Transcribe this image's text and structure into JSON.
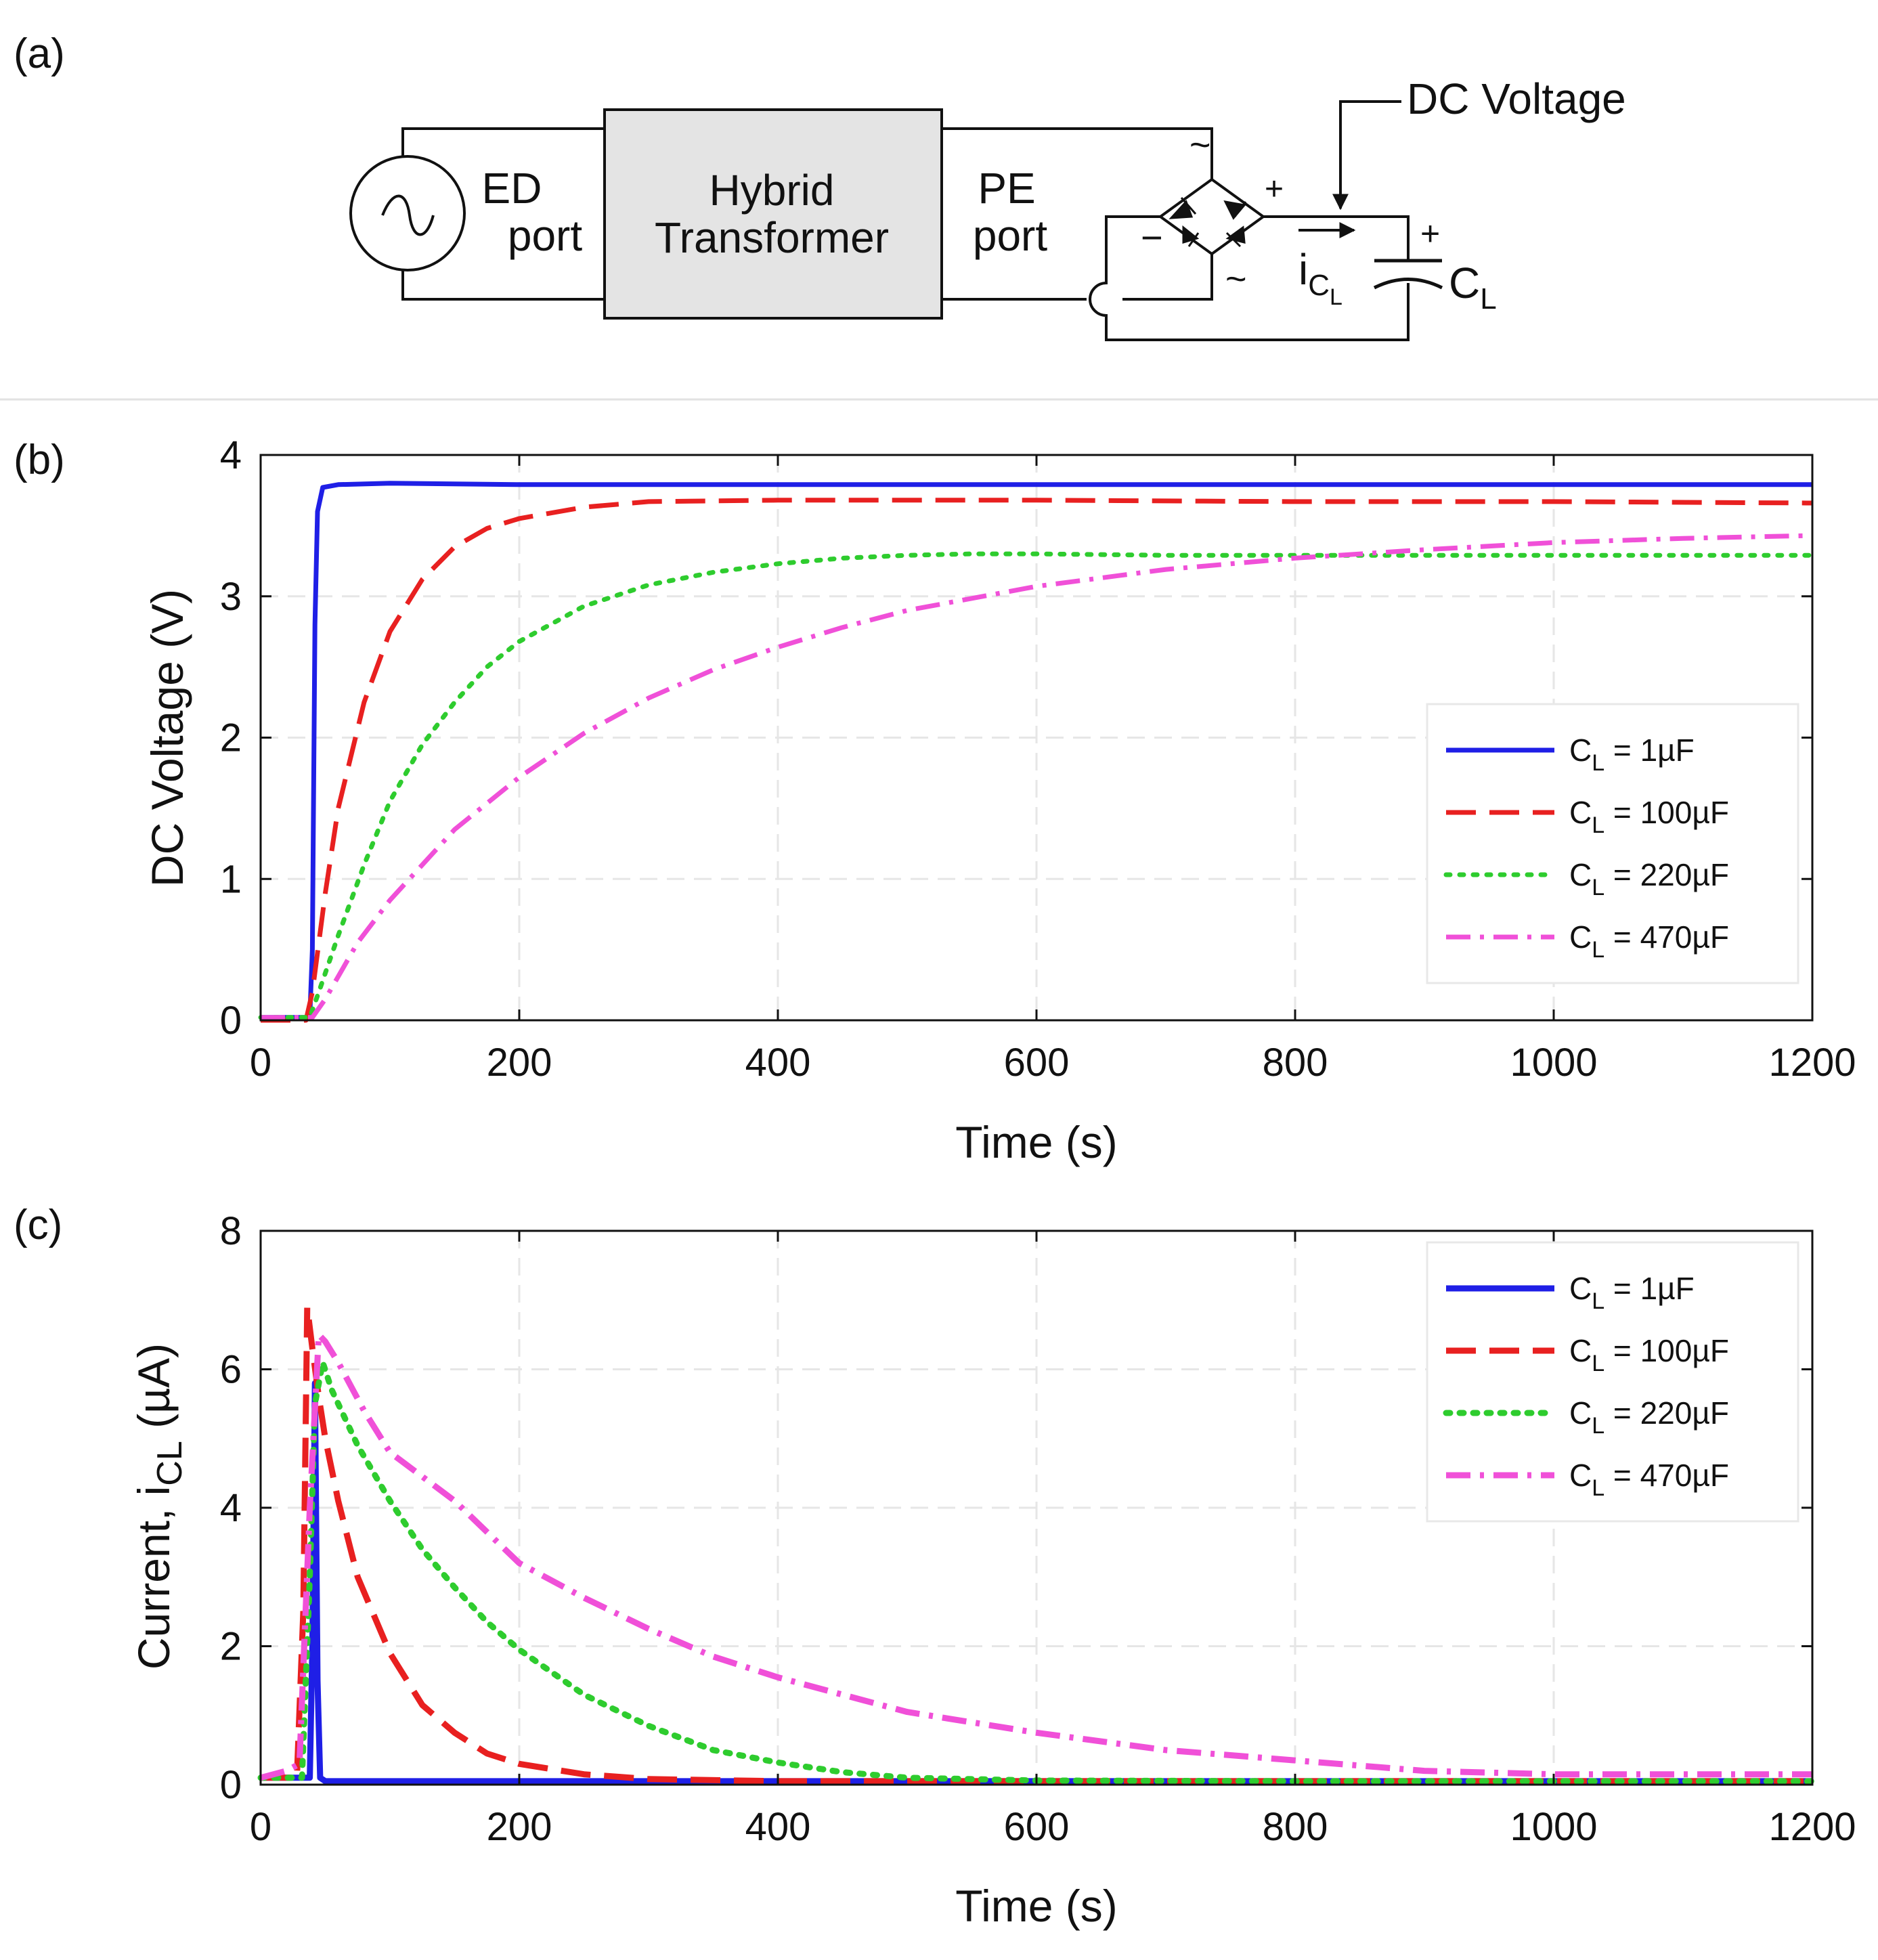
{
  "panel_labels": {
    "a": "(a)",
    "b": "(b)",
    "c": "(c)"
  },
  "diagram": {
    "ed_port": [
      "ED",
      "port"
    ],
    "transformer": [
      "Hybrid",
      "Transformer"
    ],
    "pe_port": [
      "PE",
      "port"
    ],
    "dc_voltage": "DC Voltage",
    "current_label": "i",
    "current_sub": "C",
    "current_subsub": "L",
    "cap_label": "C",
    "cap_sub": "L",
    "plus": "+",
    "minus": "−",
    "tilde": "~",
    "source_symbol": "∼"
  },
  "chart_data": [
    {
      "type": "line",
      "panel": "(b)",
      "title": "",
      "xlabel": "Time (s)",
      "ylabel": "DC Voltage (V)",
      "xlim": [
        0,
        1200
      ],
      "ylim": [
        0,
        4
      ],
      "xticks": [
        0,
        200,
        400,
        600,
        800,
        1000,
        1200
      ],
      "yticks": [
        0,
        1,
        2,
        3,
        4
      ],
      "grid": true,
      "legend_position": "lower-right",
      "series": [
        {
          "name": "C_L = 1µF",
          "label_main": "C",
          "label_sub": "L",
          "label_rest": " = 1µF",
          "color": "#1f1fe6",
          "dash": "solid",
          "x": [
            0,
            38,
            40,
            42,
            44,
            48,
            60,
            100,
            200,
            400,
            800,
            1200
          ],
          "y": [
            0.02,
            0.02,
            0.5,
            2.8,
            3.6,
            3.77,
            3.79,
            3.8,
            3.79,
            3.79,
            3.79,
            3.79
          ]
        },
        {
          "name": "C_L = 100µF",
          "label_main": "C",
          "label_sub": "L",
          "label_rest": " = 100µF",
          "color": "#e82020",
          "dash": "dashed",
          "x": [
            0,
            35,
            40,
            50,
            60,
            80,
            100,
            125,
            150,
            175,
            200,
            250,
            300,
            400,
            600,
            800,
            1000,
            1200
          ],
          "y": [
            0,
            0,
            0.2,
            0.9,
            1.5,
            2.25,
            2.75,
            3.12,
            3.35,
            3.48,
            3.55,
            3.63,
            3.67,
            3.68,
            3.68,
            3.67,
            3.67,
            3.66
          ]
        },
        {
          "name": "C_L = 220µF",
          "label_main": "C",
          "label_sub": "L",
          "label_rest": " = 220µF",
          "color": "#2ecc2e",
          "dash": "dotted",
          "x": [
            0,
            38,
            45,
            60,
            80,
            100,
            125,
            150,
            175,
            200,
            250,
            300,
            350,
            400,
            450,
            500,
            550,
            600,
            700,
            800,
            1000,
            1200
          ],
          "y": [
            0.02,
            0.02,
            0.2,
            0.6,
            1.1,
            1.55,
            1.95,
            2.25,
            2.5,
            2.68,
            2.93,
            3.08,
            3.17,
            3.23,
            3.27,
            3.29,
            3.3,
            3.3,
            3.29,
            3.29,
            3.29,
            3.29
          ]
        },
        {
          "name": "C_L = 470µF",
          "label_main": "C",
          "label_sub": "L",
          "label_rest": " = 470µF",
          "color": "#f050d8",
          "dash": "dashdot",
          "x": [
            0,
            40,
            50,
            75,
            100,
            150,
            200,
            250,
            300,
            350,
            400,
            450,
            500,
            600,
            700,
            800,
            900,
            1000,
            1100,
            1200
          ],
          "y": [
            0.02,
            0.02,
            0.15,
            0.55,
            0.85,
            1.35,
            1.72,
            2.03,
            2.28,
            2.48,
            2.64,
            2.78,
            2.9,
            3.07,
            3.19,
            3.27,
            3.33,
            3.38,
            3.41,
            3.43
          ]
        }
      ]
    },
    {
      "type": "line",
      "panel": "(c)",
      "title": "",
      "xlabel": "Time (s)",
      "ylabel": "Current, i",
      "ylabel_sub": "CL",
      "ylabel_rest": " (µA)",
      "xlim": [
        0,
        1200
      ],
      "ylim": [
        0,
        8
      ],
      "xticks": [
        0,
        200,
        400,
        600,
        800,
        1000,
        1200
      ],
      "yticks": [
        0,
        2,
        4,
        6,
        8
      ],
      "grid": true,
      "legend_position": "top-right",
      "series": [
        {
          "name": "C_L = 1µF",
          "label_main": "C",
          "label_sub": "L",
          "label_rest": " = 1µF",
          "color": "#1f1fe6",
          "dash": "solid",
          "x": [
            0,
            38,
            40,
            42,
            44,
            46,
            50,
            100,
            400,
            800,
            1200
          ],
          "y": [
            0.1,
            0.1,
            2.0,
            5.8,
            1.5,
            0.1,
            0.05,
            0.05,
            0.05,
            0.05,
            0.05
          ]
        },
        {
          "name": "C_L = 100µF",
          "label_main": "C",
          "label_sub": "L",
          "label_rest": " = 100µF",
          "color": "#e82020",
          "dash": "dashed",
          "x": [
            0,
            28,
            33,
            36,
            40,
            45,
            50,
            60,
            75,
            100,
            125,
            150,
            175,
            200,
            250,
            300,
            400,
            600,
            800,
            1000,
            1200
          ],
          "y": [
            0.1,
            0.1,
            2.5,
            6.9,
            6.3,
            5.6,
            5.0,
            4.1,
            3.0,
            1.9,
            1.15,
            0.75,
            0.45,
            0.3,
            0.15,
            0.08,
            0.05,
            0.05,
            0.05,
            0.05,
            0.05
          ]
        },
        {
          "name": "C_L = 220µF",
          "label_main": "C",
          "label_sub": "L",
          "label_rest": " = 220µF",
          "color": "#2ecc2e",
          "dash": "dotted",
          "x": [
            0,
            32,
            38,
            42,
            48,
            55,
            75,
            100,
            125,
            150,
            175,
            200,
            250,
            300,
            350,
            400,
            450,
            500,
            600,
            800,
            1000,
            1200
          ],
          "y": [
            0.1,
            0.1,
            3.0,
            5.5,
            6.1,
            5.7,
            4.9,
            4.1,
            3.4,
            2.85,
            2.35,
            1.95,
            1.3,
            0.85,
            0.5,
            0.32,
            0.18,
            0.1,
            0.06,
            0.05,
            0.05,
            0.05
          ]
        },
        {
          "name": "C_L = 470µF",
          "label_main": "C",
          "label_sub": "L",
          "label_rest": " = 470µF",
          "color": "#f050d8",
          "dash": "dashdot",
          "x": [
            0,
            20,
            30,
            38,
            45,
            50,
            60,
            80,
            100,
            125,
            150,
            200,
            250,
            300,
            350,
            400,
            450,
            500,
            600,
            700,
            800,
            900,
            1000,
            1100,
            1200
          ],
          "y": [
            0.1,
            0.2,
            0.3,
            4.0,
            6.5,
            6.4,
            6.1,
            5.4,
            4.8,
            4.45,
            4.1,
            3.2,
            2.7,
            2.25,
            1.85,
            1.55,
            1.3,
            1.05,
            0.75,
            0.5,
            0.35,
            0.2,
            0.15,
            0.15,
            0.15
          ]
        }
      ]
    }
  ]
}
